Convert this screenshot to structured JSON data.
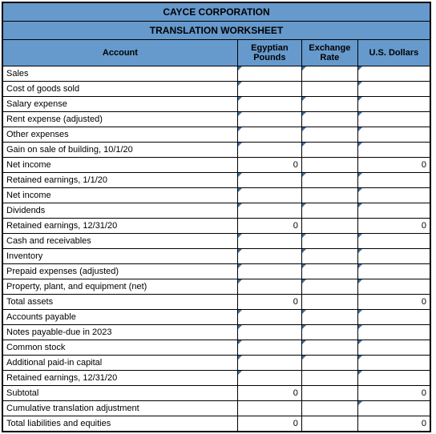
{
  "colors": {
    "header_bg": "#6699cc",
    "border": "#000000",
    "cell_bg": "#ffffff",
    "marker": "#3a6ea5"
  },
  "fonts": {
    "family": "Arial, sans-serif",
    "title_size": 12,
    "header_size": 11,
    "body_size": 11
  },
  "title1": "CAYCE CORPORATION",
  "title2": "TRANSLATION WORKSHEET",
  "columns": {
    "account": "Account",
    "ep": "Egyptian Pounds",
    "er": "Exchange Rate",
    "usd": "U.S. Dollars"
  },
  "rows": [
    {
      "account": "Sales",
      "ep_input": true,
      "er_input": true,
      "usd_input": true
    },
    {
      "account": "Cost of goods sold",
      "ep_input": true,
      "er_dashed": true,
      "usd_input": true
    },
    {
      "account": "Salary expense",
      "ep_input": true,
      "er_input": true,
      "usd_input": true
    },
    {
      "account": "Rent expense (adjusted)",
      "ep_input": true,
      "er_input": true,
      "usd_input": true
    },
    {
      "account": "Other expenses",
      "ep_input": true,
      "er_input": true,
      "usd_input": true
    },
    {
      "account": "Gain on sale of building, 10/1/20",
      "ep_input": true,
      "er_input": true,
      "usd_input": true
    },
    {
      "account": "Net income",
      "ep": "0",
      "usd": "0"
    },
    {
      "account": "Retained earnings, 1/1/20",
      "ep_input": true,
      "er_input": true,
      "usd_input": true
    },
    {
      "account": "Net income",
      "ep_input": true,
      "usd_input": true
    },
    {
      "account": "Dividends",
      "ep_input": true,
      "er_input": true,
      "usd_input": true
    },
    {
      "account": "Retained earnings, 12/31/20",
      "ep": "0",
      "usd": "0"
    },
    {
      "account": "Cash and receivables",
      "ep_input": true,
      "er_input": true,
      "usd_input": true
    },
    {
      "account": "Inventory",
      "ep_input": true,
      "er_input": true,
      "usd_input": true
    },
    {
      "account": "Prepaid expenses (adjusted)",
      "ep_input": true,
      "er_input": true,
      "usd_input": true
    },
    {
      "account": "Property, plant, and equipment (net)",
      "ep_input": true,
      "er_input": true,
      "usd_input": true
    },
    {
      "account": "Total assets",
      "ep": "0",
      "usd": "0"
    },
    {
      "account": "Accounts payable",
      "ep_input": true,
      "er_input": true,
      "usd_input": true
    },
    {
      "account": "Notes payable-due in 2023",
      "ep_input": true,
      "er_input": true,
      "usd_input": true
    },
    {
      "account": "Common stock",
      "ep_input": true,
      "er_input": true,
      "usd_input": true
    },
    {
      "account": "Additional paid-in capital",
      "ep_input": true,
      "er_input": true,
      "usd_input": true
    },
    {
      "account": "Retained earnings, 12/31/20",
      "ep_input": true,
      "usd_input": true
    },
    {
      "account": "Subtotal",
      "ep": "0",
      "usd": "0"
    },
    {
      "account": "Cumulative translation adjustment",
      "usd_input": true
    },
    {
      "account": "Total liabilities and equities",
      "ep": "0",
      "usd": "0"
    }
  ]
}
